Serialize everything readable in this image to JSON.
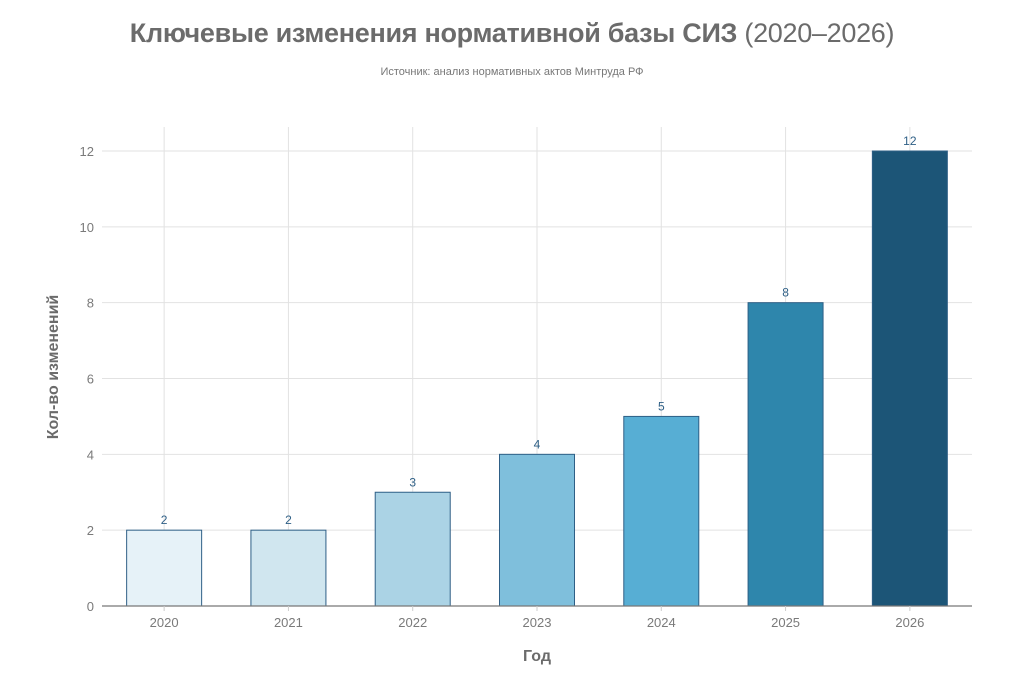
{
  "header": {
    "title_main": "Ключевые изменения нормативной базы СИЗ",
    "title_years": "(2020–2026)",
    "subtitle": "Источник: анализ нормативных актов Минтруда РФ"
  },
  "axes": {
    "xlabel": "Год",
    "ylabel": "Кол-во изменений",
    "yticks": [
      "0",
      "2",
      "4",
      "6",
      "8",
      "10",
      "12"
    ]
  },
  "bars": [
    {
      "year": "2020",
      "value": "2",
      "color": "#e6f2f8"
    },
    {
      "year": "2021",
      "value": "2",
      "color": "#d0e6ef"
    },
    {
      "year": "2022",
      "value": "3",
      "color": "#abd3e5"
    },
    {
      "year": "2023",
      "value": "4",
      "color": "#7fbfdc"
    },
    {
      "year": "2024",
      "value": "5",
      "color": "#57aed4"
    },
    {
      "year": "2025",
      "value": "8",
      "color": "#2e86ac"
    },
    {
      "year": "2026",
      "value": "12",
      "color": "#1c5577"
    }
  ],
  "chart_data": {
    "type": "bar",
    "title": "Ключевые изменения нормативной базы СИЗ (2020–2026)",
    "subtitle": "Источник: анализ нормативных актов Минтруда РФ",
    "categories": [
      "2020",
      "2021",
      "2022",
      "2023",
      "2024",
      "2025",
      "2026"
    ],
    "values": [
      2,
      2,
      3,
      4,
      5,
      8,
      12
    ],
    "xlabel": "Год",
    "ylabel": "Кол-во изменений",
    "ylim": [
      0,
      12.6
    ],
    "yticks": [
      0,
      2,
      4,
      6,
      8,
      10,
      12
    ],
    "grid": true,
    "data_labels": true,
    "legend": null,
    "colors": [
      "#e6f2f8",
      "#d0e6ef",
      "#abd3e5",
      "#7fbfdc",
      "#57aed4",
      "#2e86ac",
      "#1c5577"
    ],
    "bar_edge_color": "#2e5f86"
  }
}
